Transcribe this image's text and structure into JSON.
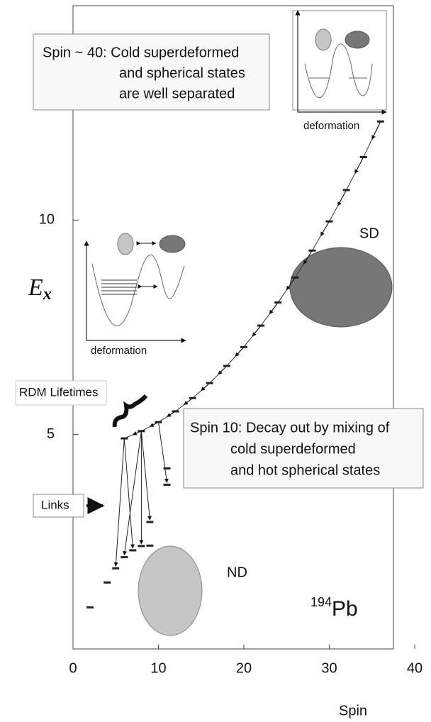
{
  "chart_data": {
    "type": "scatter",
    "ylabel": {
      "main": "E",
      "sub": "x"
    },
    "xlabel": "Spin",
    "xlim": [
      0,
      40
    ],
    "ylim": [
      0,
      15
    ],
    "xticks": [
      0,
      10,
      20,
      30,
      40
    ],
    "yticks": [
      5,
      10
    ],
    "series": [
      {
        "name": "SD",
        "color": "#222222",
        "x": [
          6,
          8,
          10,
          12,
          14,
          16,
          18,
          20,
          22,
          24,
          26,
          28,
          30,
          32,
          34,
          36
        ],
        "values": [
          4.91,
          5.08,
          5.29,
          5.54,
          5.85,
          6.2,
          6.6,
          7.04,
          7.54,
          8.08,
          8.66,
          9.29,
          9.97,
          10.7,
          11.47,
          12.3
        ]
      },
      {
        "name": "ND",
        "color": "#222222",
        "x": [
          2,
          4,
          5,
          6,
          7,
          8,
          9,
          9,
          11,
          11
        ],
        "values": [
          0.97,
          1.55,
          1.88,
          2.14,
          2.3,
          2.4,
          2.41,
          2.96,
          3.83,
          4.21
        ]
      }
    ],
    "links": [
      {
        "x": [
          6,
          5
        ],
        "values": [
          4.91,
          1.88
        ]
      },
      {
        "x": [
          6,
          7
        ],
        "values": [
          4.91,
          2.3
        ]
      },
      {
        "x": [
          8,
          6
        ],
        "values": [
          5.08,
          2.14
        ]
      },
      {
        "x": [
          8,
          8
        ],
        "values": [
          5.08,
          2.4
        ]
      },
      {
        "x": [
          8,
          9
        ],
        "values": [
          5.08,
          2.96
        ]
      },
      {
        "x": [
          10,
          11
        ],
        "values": [
          5.29,
          3.83
        ]
      }
    ],
    "annotations": {
      "top_box": [
        "Spin ~ 40: Cold superdeformed",
        "and spherical states",
        "are well separated"
      ],
      "bottom_box": [
        "Spin 10: Decay out by mixing of",
        "cold superdeformed",
        "and hot spherical states"
      ],
      "inset_top_axis": "deformation",
      "inset_mid_axis": "deformation",
      "sd_label": "SD",
      "nd_label": "ND",
      "rdm": "RDM Lifetimes",
      "links_label": "Links",
      "isotope": {
        "mass": "194",
        "symbol": "Pb"
      }
    }
  }
}
